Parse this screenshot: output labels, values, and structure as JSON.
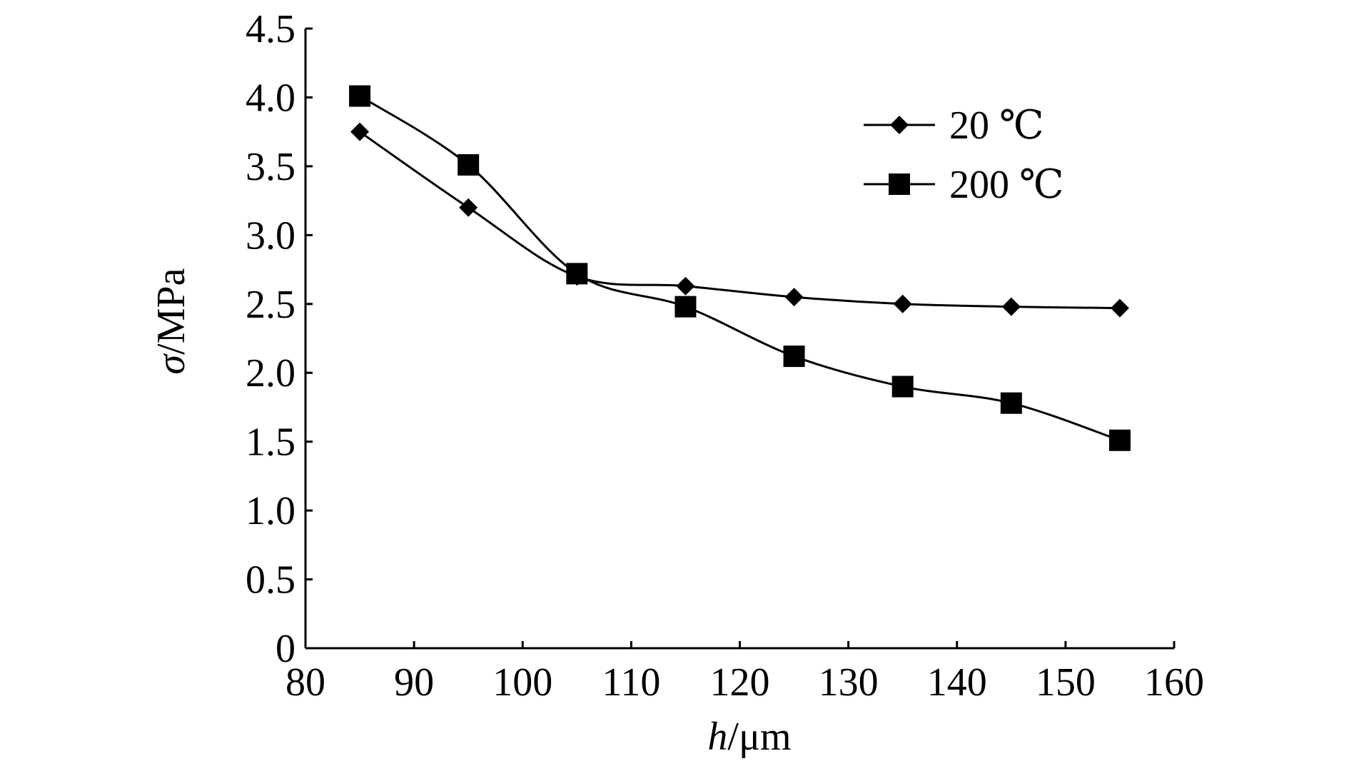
{
  "chart_data": {
    "type": "line",
    "title": "",
    "xlabel": {
      "var": "h",
      "unit": "/μm"
    },
    "ylabel": {
      "var": "σ",
      "unit": "/MPa"
    },
    "xlim": [
      80,
      160
    ],
    "ylim": [
      0,
      4.5
    ],
    "xticks": [
      80,
      90,
      100,
      110,
      120,
      130,
      140,
      150,
      160
    ],
    "xtick_labels": [
      "80",
      "90",
      "100",
      "110",
      "120",
      "130",
      "140",
      "150",
      "160"
    ],
    "yticks": [
      0,
      0.5,
      1.0,
      1.5,
      2.0,
      2.5,
      3.0,
      3.5,
      4.0,
      4.5
    ],
    "ytick_labels": [
      "0",
      "0.5",
      "1.0",
      "1.5",
      "2.0",
      "2.5",
      "3.0",
      "3.5",
      "4.0",
      "4.5"
    ],
    "grid": false,
    "legend_position": "top-right",
    "series": [
      {
        "name": "20 ℃",
        "marker": "diamond",
        "x": [
          85,
          95,
          105,
          115,
          125,
          135,
          145,
          155
        ],
        "y": [
          3.75,
          3.2,
          2.7,
          2.63,
          2.55,
          2.5,
          2.48,
          2.47
        ]
      },
      {
        "name": "200 ℃",
        "marker": "square",
        "x": [
          85,
          95,
          105,
          115,
          125,
          135,
          145,
          155
        ],
        "y": [
          4.01,
          3.51,
          2.72,
          2.48,
          2.12,
          1.9,
          1.78,
          1.51
        ]
      }
    ]
  }
}
